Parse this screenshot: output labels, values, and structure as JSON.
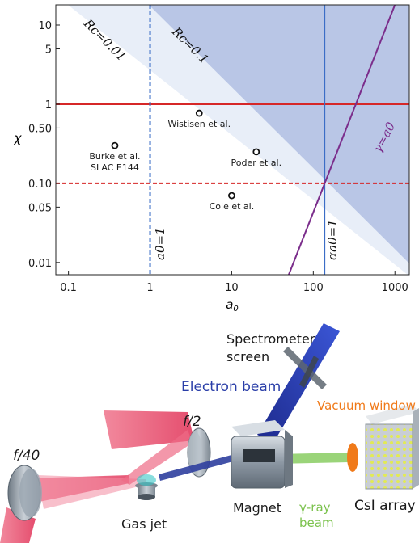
{
  "chart_data": {
    "type": "line",
    "xscale": "log",
    "yscale": "log",
    "xlim": [
      0.07,
      1500
    ],
    "ylim": [
      0.007,
      18
    ],
    "xlabel": "a0",
    "ylabel": "χ",
    "xticks": [
      {
        "value": 0.1,
        "label": "0.1"
      },
      {
        "value": 1,
        "label": "1"
      },
      {
        "value": 10,
        "label": "10"
      },
      {
        "value": 100,
        "label": "100"
      },
      {
        "value": 1000,
        "label": "1000"
      }
    ],
    "yticks": [
      {
        "value": 0.01,
        "label": "0.01"
      },
      {
        "value": 0.05,
        "label": "0.05"
      },
      {
        "value": 0.1,
        "label": "0.10"
      },
      {
        "value": 0.5,
        "label": "0.50"
      },
      {
        "value": 1,
        "label": "1"
      },
      {
        "value": 5,
        "label": "5"
      },
      {
        "value": 10,
        "label": "10"
      }
    ],
    "regions": [
      {
        "label": "Rc=0.01",
        "color": "#e8eef8"
      },
      {
        "label": "Rc=0.1",
        "color": "#b9c6e6"
      }
    ],
    "lines": [
      {
        "label": "",
        "orientation": "horizontal",
        "value": 1,
        "color": "#d62728",
        "style": "solid"
      },
      {
        "label": "",
        "orientation": "horizontal",
        "value": 0.1,
        "color": "#d62728",
        "style": "dashed"
      },
      {
        "label": "a0=1",
        "orientation": "vertical",
        "value": 1,
        "color": "#3b6dc6",
        "style": "dashed"
      },
      {
        "label": "αa0=1",
        "orientation": "vertical",
        "value": 137,
        "color": "#3b6dc6",
        "style": "solid"
      },
      {
        "label": "γ=a0",
        "orientation": "diagonal",
        "points": [
          [
            50,
            0.007
          ],
          [
            1000,
            18
          ]
        ],
        "color": "#7b2d8b",
        "style": "solid"
      }
    ],
    "points": [
      {
        "label": "Burke et al.",
        "label2": "SLAC E144",
        "x": 0.37,
        "y": 0.3
      },
      {
        "label": "Wistisen et al.",
        "x": 4,
        "y": 0.77
      },
      {
        "label": "Poder et al.",
        "x": 20,
        "y": 0.25
      },
      {
        "label": "Cole et al.",
        "x": 10,
        "y": 0.07
      }
    ]
  },
  "setup": {
    "spectrometer_line1": "Spectrometer",
    "spectrometer_line2": "screen",
    "electron_beam": "Electron beam",
    "vacuum_window": "Vacuum window",
    "f40": "f/40",
    "f2": "f/2",
    "gas_jet": "Gas jet",
    "magnet": "Magnet",
    "gamma_line1": "γ-ray",
    "gamma_line2": "beam",
    "csi_array": "CsI array",
    "colors": {
      "laser": "#e84a6a",
      "electron_beam": "#2a3ea8",
      "gamma_beam": "#8fcf6a",
      "vacuum_window": "#f07a1a",
      "metal": "#9aa6b2"
    }
  }
}
